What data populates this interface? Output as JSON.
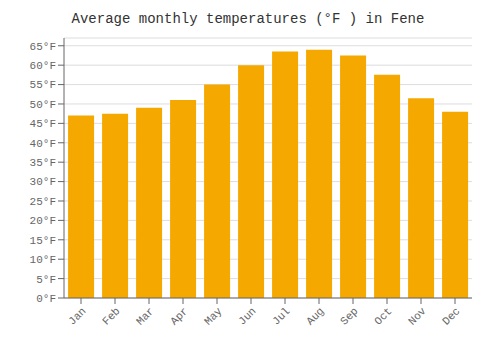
{
  "chart_data": {
    "type": "bar",
    "title": "Average monthly temperatures (°F ) in Fene",
    "categories": [
      "Jan",
      "Feb",
      "Mar",
      "Apr",
      "May",
      "Jun",
      "Jul",
      "Aug",
      "Sep",
      "Oct",
      "Nov",
      "Dec"
    ],
    "values": [
      47.0,
      47.5,
      49.0,
      51.0,
      55.0,
      60.0,
      63.5,
      64.0,
      62.5,
      57.5,
      51.5,
      48.0
    ],
    "color": "#F5A800",
    "ylim": [
      0,
      67
    ],
    "yticks": [
      {
        "value": 0,
        "label": "0°F"
      },
      {
        "value": 5,
        "label": "5°F"
      },
      {
        "value": 10,
        "label": "10°F"
      },
      {
        "value": 15,
        "label": "15°F"
      },
      {
        "value": 20,
        "label": "20°F"
      },
      {
        "value": 25,
        "label": "25°F"
      },
      {
        "value": 30,
        "label": "30°F"
      },
      {
        "value": 35,
        "label": "35°F"
      },
      {
        "value": 40,
        "label": "40°F"
      },
      {
        "value": 45,
        "label": "45°F"
      },
      {
        "value": 50,
        "label": "50°F"
      },
      {
        "value": 55,
        "label": "55°F"
      },
      {
        "value": 60,
        "label": "60°F"
      },
      {
        "value": 65,
        "label": "65°F"
      }
    ],
    "grid": true
  }
}
